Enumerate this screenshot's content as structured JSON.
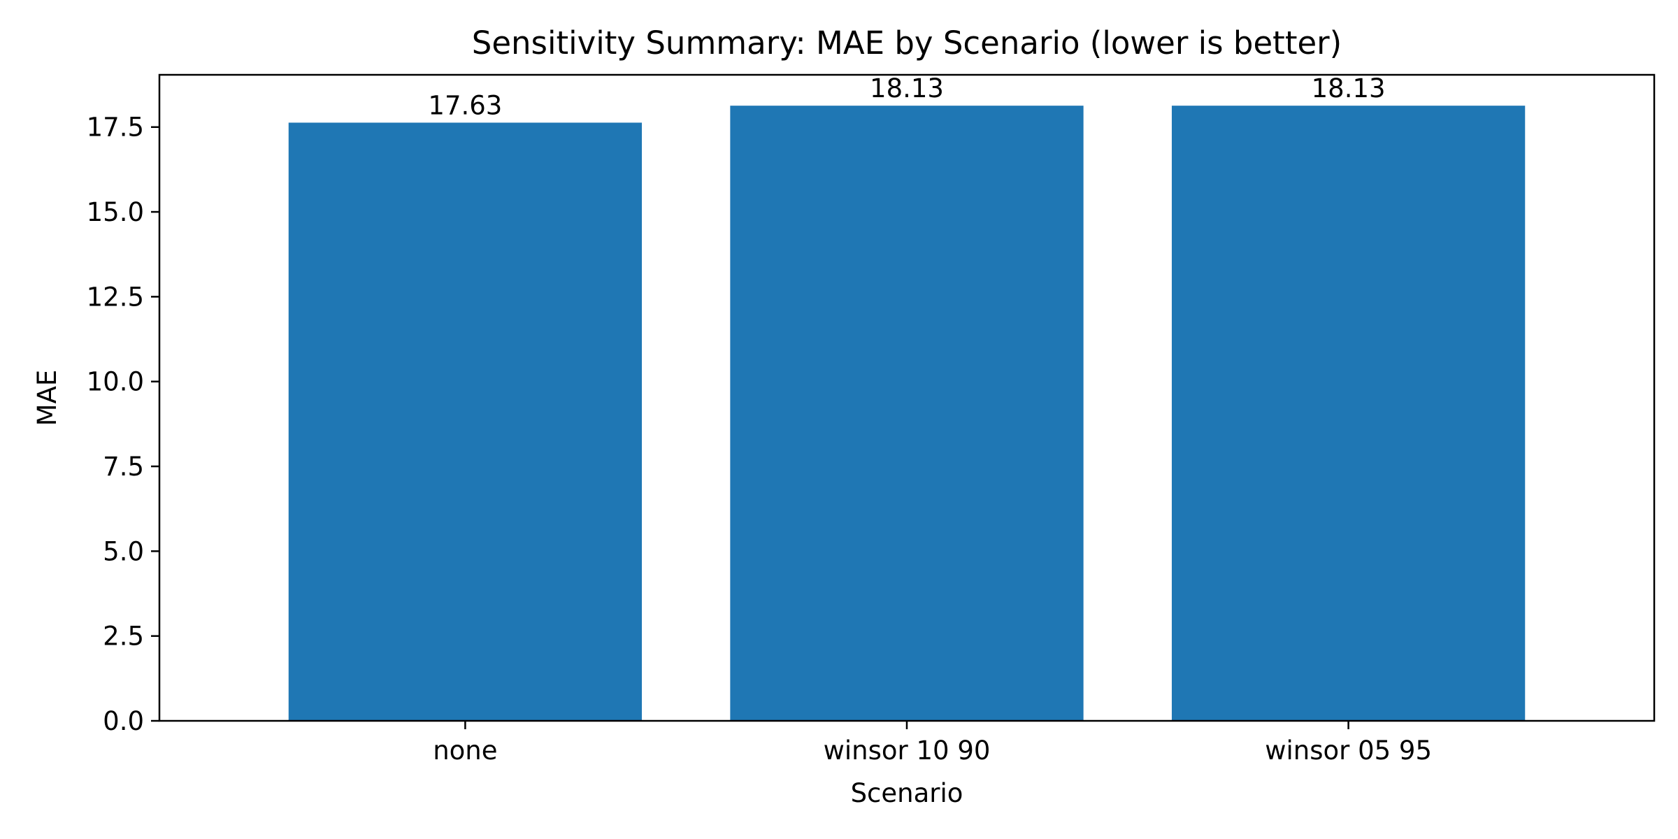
{
  "chart_data": {
    "type": "bar",
    "title": "Sensitivity Summary: MAE by Scenario (lower is better)",
    "xlabel": "Scenario",
    "ylabel": "MAE",
    "categories": [
      "none",
      "winsor 10 90",
      "winsor 05 95"
    ],
    "values": [
      17.63,
      18.13,
      18.13
    ],
    "data_labels": [
      "17.63",
      "18.13",
      "18.13"
    ],
    "ylim": [
      0,
      19.04
    ],
    "yticks": [
      0,
      2.5,
      5,
      7.5,
      10,
      12.5,
      15,
      17.5
    ],
    "ytick_labels": [
      "0.0",
      "2.5",
      "5.0",
      "7.5",
      "10.0",
      "12.5",
      "15.0",
      "17.5"
    ],
    "grid": false,
    "bar_color": "#1f77b4"
  }
}
